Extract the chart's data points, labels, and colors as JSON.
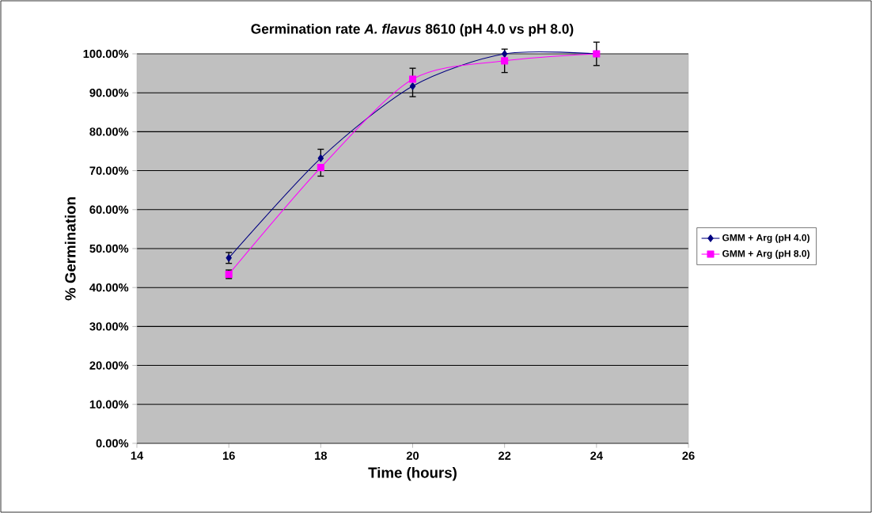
{
  "chart_data": {
    "type": "line",
    "title": "Germination rate *A. flavus* 8610 (pH 4.0 vs pH 8.0)",
    "xlabel": "Time (hours)",
    "ylabel": "% Germination",
    "x": [
      16,
      18,
      20,
      22,
      24
    ],
    "series": [
      {
        "name": "GMM + Arg (pH 4.0)",
        "color": "#000080",
        "marker": "diamond",
        "values": [
          47.6,
          73.2,
          91.7,
          100,
          100
        ],
        "errors": [
          1.4,
          [
            73.2,
            75.5
          ],
          [
            89.0,
            91.7
          ],
          null,
          null
        ]
      },
      {
        "name": "GMM + Arg (pH 8.0)",
        "color": "#ff00ff",
        "marker": "square",
        "values": [
          43.4,
          70.8,
          93.5,
          98.2,
          100
        ],
        "errors": [
          1.1,
          [
            68.6,
            70.8
          ],
          [
            93.5,
            96.3
          ],
          3.0,
          3.0
        ]
      }
    ],
    "xlim": [
      14,
      26
    ],
    "xticks": [
      14,
      16,
      18,
      20,
      22,
      24,
      26
    ],
    "ylim": [
      0,
      100
    ],
    "yticks": [
      {
        "value": 0,
        "label": "0.00%"
      },
      {
        "value": 10,
        "label": "10.00%"
      },
      {
        "value": 20,
        "label": "20.00%"
      },
      {
        "value": 30,
        "label": "30.00%"
      },
      {
        "value": 40,
        "label": "40.00%"
      },
      {
        "value": 50,
        "label": "50.00%"
      },
      {
        "value": 60,
        "label": "60.00%"
      },
      {
        "value": 70,
        "label": "70.00%"
      },
      {
        "value": 80,
        "label": "80.00%"
      },
      {
        "value": 90,
        "label": "90.00%"
      },
      {
        "value": 100,
        "label": "100.00%"
      }
    ],
    "grid": "y",
    "legend": "right",
    "line_style": "solid"
  }
}
